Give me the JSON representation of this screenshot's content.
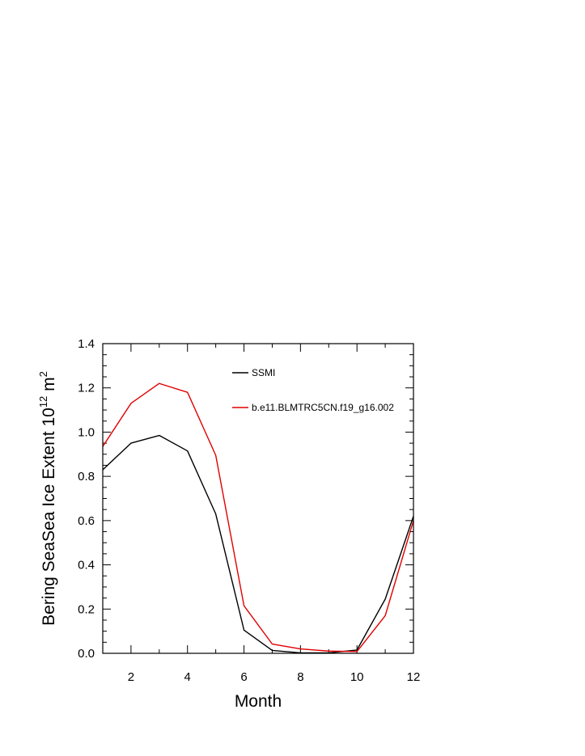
{
  "chart_data": {
    "type": "line",
    "xlabel": "Month",
    "ylabel": {
      "prefix": "Bering SeaSea Ice Extent 10",
      "exponent": "12",
      "unit": " m",
      "unit_exponent": "2"
    },
    "xlim": [
      1,
      12
    ],
    "ylim": [
      0,
      1.4
    ],
    "xticks": [
      2,
      4,
      6,
      8,
      10,
      12
    ],
    "yticks": [
      0.0,
      0.2,
      0.4,
      0.6,
      0.8,
      1.0,
      1.2,
      1.4
    ],
    "ytick_labels": [
      "0.0",
      "0.2",
      "0.4",
      "0.6",
      "0.8",
      "1.0",
      "1.2",
      "1.4"
    ],
    "x": [
      1,
      2,
      3,
      4,
      5,
      6,
      7,
      8,
      9,
      10,
      11,
      12
    ],
    "grid": false,
    "legend_position": "top-right",
    "series": [
      {
        "name": "SSMI",
        "color": "#000000",
        "values": [
          0.83,
          0.95,
          0.985,
          0.915,
          0.63,
          0.105,
          0.013,
          0.002,
          0.002,
          0.015,
          0.245,
          0.62
        ]
      },
      {
        "name": "b.e11.BLMTRC5CN.f19_g16.002",
        "color": "#e00000",
        "values": [
          0.935,
          1.13,
          1.22,
          1.18,
          0.895,
          0.215,
          0.042,
          0.02,
          0.01,
          0.008,
          0.17,
          0.6
        ]
      }
    ]
  }
}
